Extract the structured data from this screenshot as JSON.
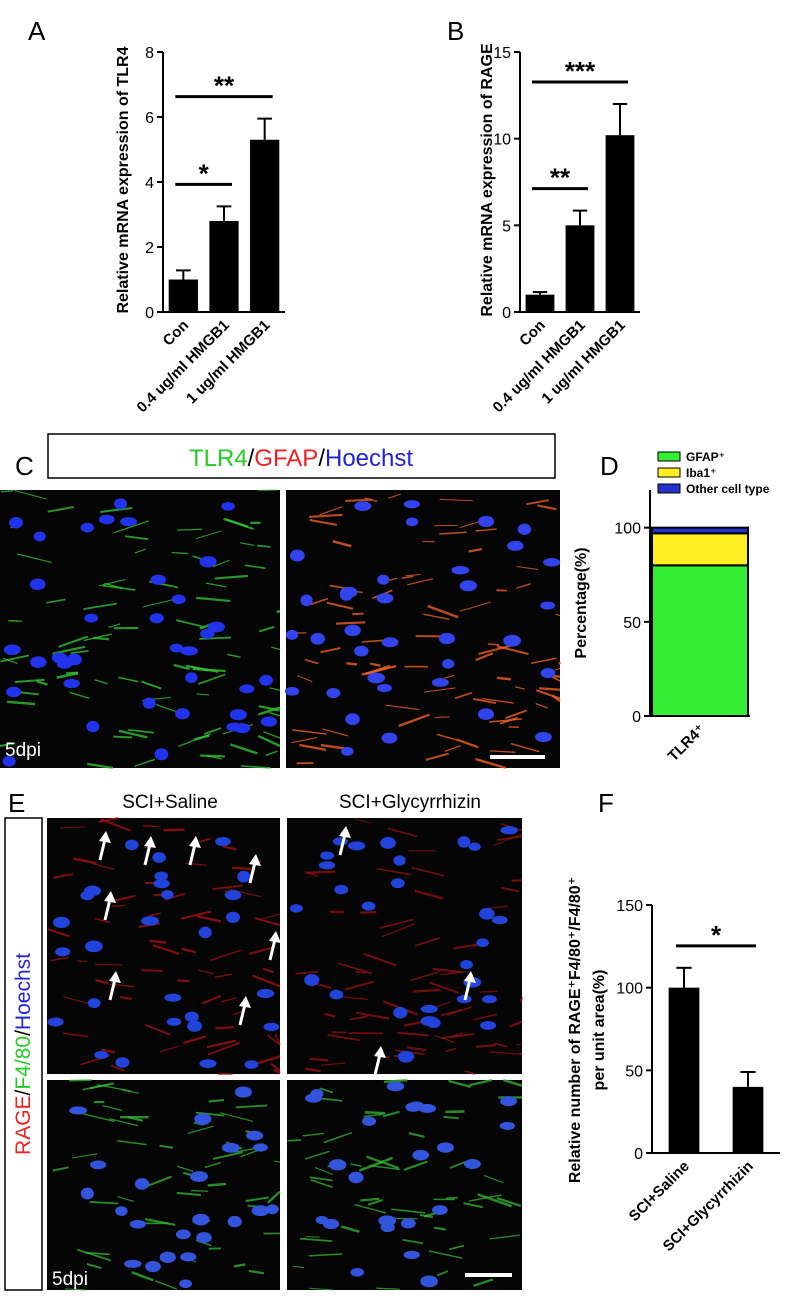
{
  "chart_data": [
    {
      "type": "bar",
      "panel": "A",
      "ylabel": "Relative mRNA expression of TLR4",
      "categories": [
        "Con",
        "0.4 ug/ml HMGB1",
        "1 ug/ml HMGB1"
      ],
      "values": [
        1,
        2.8,
        5.3
      ],
      "errors": [
        0.28,
        0.45,
        0.65
      ],
      "color": "#000000",
      "ylim": [
        0,
        8
      ],
      "yticks": [
        0,
        2,
        4,
        6,
        8
      ],
      "annotations": [
        {
          "text": "*",
          "between": [
            "Con",
            "0.4 ug/ml HMGB1"
          ]
        },
        {
          "text": "**",
          "between": [
            "Con",
            "1 ug/ml HMGB1"
          ]
        }
      ]
    },
    {
      "type": "bar",
      "panel": "B",
      "ylabel": "Relative mRNA expression of RAGE",
      "categories": [
        "Con",
        "0.4 ug/ml HMGB1",
        "1 ug/ml HMGB1"
      ],
      "values": [
        1,
        5,
        10.2
      ],
      "errors": [
        0.15,
        0.85,
        1.8
      ],
      "color": "#000000",
      "ylim": [
        0,
        15
      ],
      "yticks": [
        0,
        5,
        10,
        15
      ],
      "annotations": [
        {
          "text": "**",
          "between": [
            "Con",
            "0.4 ug/ml HMGB1"
          ]
        },
        {
          "text": "***",
          "between": [
            "Con",
            "1 ug/ml HMGB1"
          ]
        }
      ]
    },
    {
      "type": "stacked_bar",
      "panel": "D",
      "ylabel": "Percentage(%)",
      "categories": [
        "TLR4⁺"
      ],
      "series": [
        {
          "name": "GFAP⁺",
          "color": "#33ee33",
          "values": [
            80
          ]
        },
        {
          "name": "Iba1⁺",
          "color": "#ffee22",
          "values": [
            17
          ]
        },
        {
          "name": "Other cell type",
          "color": "#2233cc",
          "values": [
            3
          ]
        }
      ],
      "ylim": [
        0,
        120
      ],
      "yticks": [
        0,
        50,
        100
      ],
      "legend": "top"
    },
    {
      "type": "bar",
      "panel": "F",
      "ylabel": [
        "Relative number of RAGE⁺F4/80⁺/F4/80⁺",
        "per unit area(%)"
      ],
      "categories": [
        "SCI+Saline",
        "SCI+Glycyrrhizin"
      ],
      "values": [
        100,
        40
      ],
      "errors": [
        12,
        9
      ],
      "color": "#000000",
      "ylim": [
        0,
        150
      ],
      "yticks": [
        0,
        50,
        100,
        150
      ],
      "annotations": [
        {
          "text": "*",
          "between": [
            "SCI+Saline",
            "SCI+Glycyrrhizin"
          ]
        }
      ]
    }
  ],
  "panel_c": {
    "letter": "C",
    "title_parts": [
      {
        "text": "TLR4",
        "color": "#22cc22"
      },
      {
        "text": "/",
        "color": "#000000"
      },
      {
        "text": "GFAP",
        "color": "#ee2222"
      },
      {
        "text": "/",
        "color": "#000000"
      },
      {
        "text": "Hoechst",
        "color": "#2222dd"
      }
    ],
    "time": "5dpi"
  },
  "panel_e": {
    "letter": "E",
    "columns": [
      "SCI+Saline",
      "SCI+Glycyrrhizin"
    ],
    "side_parts": [
      {
        "text": "RAGE",
        "color": "#ee2222"
      },
      {
        "text": "/",
        "color": "#000000"
      },
      {
        "text": "F4/80",
        "color": "#22cc22"
      },
      {
        "text": "/",
        "color": "#000000"
      },
      {
        "text": "Hoechst",
        "color": "#2222dd"
      }
    ],
    "time": "5dpi"
  }
}
